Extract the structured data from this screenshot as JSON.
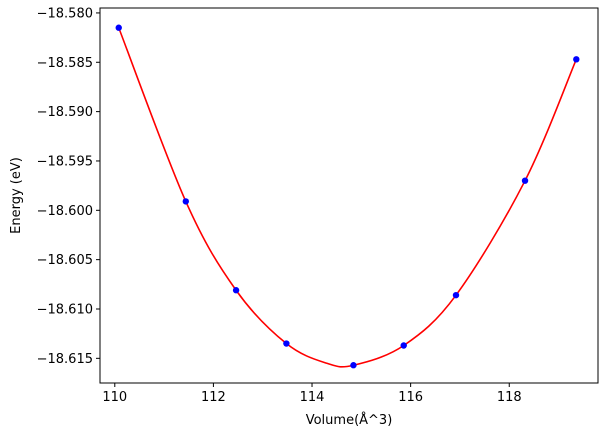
{
  "chart_data": {
    "type": "scatter",
    "xlabel": "Volume(Å^3)",
    "ylabel": "Energy (eV)",
    "xlim": [
      109.7,
      119.8
    ],
    "ylim": [
      -18.6175,
      -18.5795
    ],
    "x_ticks": [
      110,
      112,
      114,
      116,
      118
    ],
    "x_tick_labels": [
      "110",
      "112",
      "114",
      "116",
      "118"
    ],
    "y_ticks": [
      -18.58,
      -18.585,
      -18.59,
      -18.595,
      -18.6,
      -18.605,
      -18.61,
      -18.615
    ],
    "y_tick_labels": [
      "−18.580",
      "−18.585",
      "−18.590",
      "−18.595",
      "−18.600",
      "−18.605",
      "−18.610",
      "−18.615"
    ],
    "grid": false,
    "series": [
      {
        "kind": "points",
        "color": "#0000ff",
        "x": [
          110.08,
          111.44,
          112.46,
          113.48,
          114.84,
          115.86,
          116.92,
          118.32,
          119.36
        ],
        "y": [
          -18.5815,
          -18.5991,
          -18.6081,
          -18.6135,
          -18.6157,
          -18.6137,
          -18.6086,
          -18.597,
          -18.5847
        ]
      },
      {
        "kind": "fit-curve",
        "color": "#ff0000",
        "x": [
          110.08,
          111.44,
          112.46,
          113.48,
          114.3,
          114.84,
          115.86,
          116.92,
          118.32,
          119.36
        ],
        "y": [
          -18.5815,
          -18.5991,
          -18.6081,
          -18.6135,
          -18.6155,
          -18.6157,
          -18.6137,
          -18.6086,
          -18.597,
          -18.5847
        ]
      }
    ]
  }
}
